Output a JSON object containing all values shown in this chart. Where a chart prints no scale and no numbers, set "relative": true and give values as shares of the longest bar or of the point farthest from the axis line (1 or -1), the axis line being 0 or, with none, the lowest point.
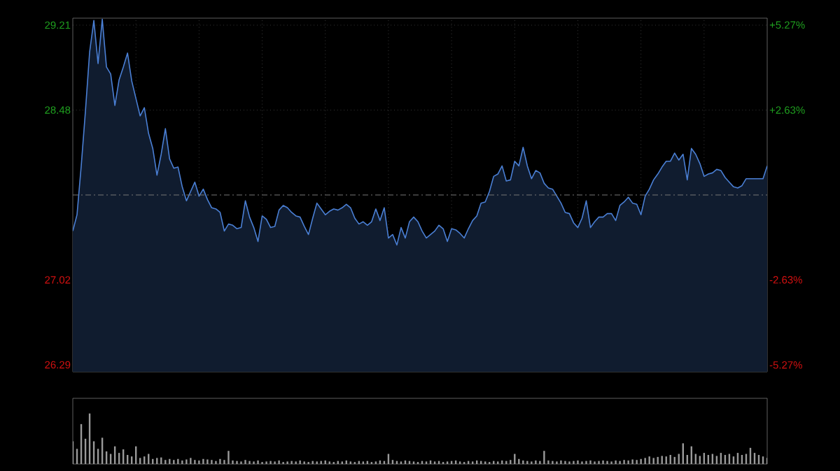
{
  "chart_data": [
    {
      "type": "area",
      "color": "#4a7fd4",
      "categories": [
        null,
        null,
        null,
        null,
        null,
        null,
        null,
        null,
        null,
        null,
        null,
        null,
        null,
        null,
        null,
        null,
        null,
        null,
        null,
        null,
        null,
        null,
        null,
        null,
        null,
        null,
        null,
        null,
        null,
        null,
        null,
        null,
        null,
        null,
        null,
        null,
        null,
        null,
        null,
        null,
        null,
        null,
        null,
        null,
        null,
        null,
        null,
        null,
        null,
        null,
        null,
        null,
        null,
        null,
        null,
        null,
        null,
        null,
        null,
        null,
        null,
        null,
        null,
        null,
        null,
        null,
        null,
        null,
        null,
        null,
        null,
        null,
        null,
        null,
        null,
        null,
        null,
        null,
        null,
        null,
        null,
        null,
        null,
        null,
        null,
        null,
        null,
        null,
        null,
        null,
        null,
        null,
        null,
        null,
        null,
        null,
        null,
        null,
        null,
        null,
        null,
        null,
        null,
        null,
        null,
        null,
        null,
        null,
        null,
        null,
        null,
        null,
        null,
        null,
        null,
        null,
        null,
        null,
        null,
        null,
        null,
        null,
        null,
        null,
        null,
        null,
        null,
        null,
        null,
        null,
        null,
        null,
        null,
        null,
        null,
        null,
        null,
        null,
        null,
        null,
        null,
        null,
        null,
        null,
        null,
        null,
        null,
        null,
        null,
        null,
        null,
        null,
        null,
        null,
        null,
        null,
        null,
        null,
        null,
        null,
        null,
        null,
        null,
        null,
        null,
        null
      ],
      "values": [
        27.44,
        27.58,
        28.0,
        28.47,
        28.98,
        29.25,
        28.88,
        29.26,
        28.85,
        28.79,
        28.52,
        28.74,
        28.85,
        28.97,
        28.73,
        28.58,
        28.43,
        28.5,
        28.28,
        28.15,
        27.92,
        28.1,
        28.32,
        28.06,
        27.98,
        27.99,
        27.82,
        27.7,
        27.78,
        27.86,
        27.74,
        27.8,
        27.71,
        27.64,
        27.63,
        27.6,
        27.44,
        27.5,
        27.49,
        27.46,
        27.47,
        27.7,
        27.56,
        27.47,
        27.35,
        27.57,
        27.54,
        27.47,
        27.48,
        27.62,
        27.66,
        27.64,
        27.6,
        27.57,
        27.56,
        27.48,
        27.41,
        27.55,
        27.68,
        27.63,
        27.58,
        27.61,
        27.63,
        27.62,
        27.64,
        27.67,
        27.64,
        27.55,
        27.5,
        27.52,
        27.49,
        27.52,
        27.63,
        27.53,
        27.64,
        27.38,
        27.41,
        27.32,
        27.47,
        27.38,
        27.52,
        27.56,
        27.52,
        27.44,
        27.38,
        27.41,
        27.44,
        27.49,
        27.46,
        27.35,
        27.46,
        27.45,
        27.42,
        27.38,
        27.46,
        27.53,
        27.57,
        27.68,
        27.69,
        27.78,
        27.91,
        27.93,
        28.0,
        27.87,
        27.88,
        28.04,
        28.0,
        28.16,
        28.0,
        27.89,
        27.96,
        27.94,
        27.85,
        27.81,
        27.8,
        27.74,
        27.68,
        27.6,
        27.59,
        27.51,
        27.47,
        27.55,
        27.7,
        27.47,
        27.52,
        27.56,
        27.56,
        27.59,
        27.59,
        27.53,
        27.66,
        27.69,
        27.73,
        27.68,
        27.67,
        27.58,
        27.74,
        27.8,
        27.88,
        27.93,
        27.99,
        28.04,
        28.04,
        28.11,
        28.05,
        28.1,
        27.88,
        28.15,
        28.1,
        28.02,
        27.91,
        27.93,
        27.94,
        27.97,
        27.96,
        27.9,
        27.86,
        27.82,
        27.81,
        27.83,
        27.89,
        27.89,
        27.89,
        27.89,
        27.89,
        28.0
      ],
      "ylim": [
        26.23,
        29.27
      ],
      "yticks": [
        26.29,
        27.02,
        28.48,
        29.21
      ],
      "y2lim": [
        -5.48,
        5.48
      ],
      "y2ticks": [
        {
          "value": -5.27,
          "label": "-5.27%"
        },
        {
          "value": -2.63,
          "label": "-2.63%"
        },
        {
          "value": 2.63,
          "label": "+2.63%"
        },
        {
          "value": 5.27,
          "label": "+5.27%"
        }
      ],
      "ref_lines": [
        {
          "axis": "y",
          "value": 27.75,
          "line_style": "dashed"
        }
      ],
      "grid": true
    },
    {
      "type": "bar",
      "color": "#9a9a9a",
      "relative": true,
      "categories": [
        null,
        null,
        null,
        null,
        null,
        null,
        null,
        null,
        null,
        null,
        null,
        null,
        null,
        null,
        null,
        null,
        null,
        null,
        null,
        null,
        null,
        null,
        null,
        null,
        null,
        null,
        null,
        null,
        null,
        null,
        null,
        null,
        null,
        null,
        null,
        null,
        null,
        null,
        null,
        null,
        null,
        null,
        null,
        null,
        null,
        null,
        null,
        null,
        null,
        null,
        null,
        null,
        null,
        null,
        null,
        null,
        null,
        null,
        null,
        null,
        null,
        null,
        null,
        null,
        null,
        null,
        null,
        null,
        null,
        null,
        null,
        null,
        null,
        null,
        null,
        null,
        null,
        null,
        null,
        null,
        null,
        null,
        null,
        null,
        null,
        null,
        null,
        null,
        null,
        null,
        null,
        null,
        null,
        null,
        null,
        null,
        null,
        null,
        null,
        null,
        null,
        null,
        null,
        null,
        null,
        null,
        null,
        null,
        null,
        null,
        null,
        null,
        null,
        null,
        null,
        null,
        null,
        null,
        null,
        null,
        null,
        null,
        null,
        null,
        null,
        null,
        null,
        null,
        null,
        null,
        null,
        null,
        null,
        null,
        null,
        null,
        null,
        null,
        null,
        null,
        null,
        null,
        null,
        null,
        null,
        null,
        null,
        null,
        null,
        null,
        null,
        null,
        null,
        null,
        null,
        null,
        null,
        null,
        null,
        null,
        null,
        null,
        null,
        null,
        null,
        null
      ],
      "values": [
        0.45,
        0.3,
        0.79,
        0.5,
        1.0,
        0.45,
        0.3,
        0.52,
        0.25,
        0.2,
        0.35,
        0.22,
        0.29,
        0.18,
        0.15,
        0.35,
        0.12,
        0.15,
        0.2,
        0.1,
        0.12,
        0.13,
        0.08,
        0.1,
        0.08,
        0.1,
        0.07,
        0.09,
        0.12,
        0.08,
        0.07,
        0.1,
        0.09,
        0.08,
        0.06,
        0.1,
        0.08,
        0.26,
        0.07,
        0.06,
        0.05,
        0.08,
        0.06,
        0.05,
        0.07,
        0.04,
        0.05,
        0.06,
        0.05,
        0.07,
        0.04,
        0.05,
        0.06,
        0.05,
        0.07,
        0.05,
        0.04,
        0.06,
        0.05,
        0.06,
        0.07,
        0.05,
        0.04,
        0.06,
        0.05,
        0.07,
        0.05,
        0.04,
        0.06,
        0.05,
        0.06,
        0.04,
        0.05,
        0.07,
        0.06,
        0.2,
        0.08,
        0.06,
        0.05,
        0.07,
        0.06,
        0.05,
        0.04,
        0.06,
        0.05,
        0.07,
        0.05,
        0.06,
        0.04,
        0.05,
        0.06,
        0.07,
        0.05,
        0.04,
        0.06,
        0.05,
        0.07,
        0.06,
        0.05,
        0.04,
        0.06,
        0.05,
        0.07,
        0.06,
        0.08,
        0.2,
        0.1,
        0.07,
        0.06,
        0.05,
        0.07,
        0.06,
        0.26,
        0.07,
        0.06,
        0.05,
        0.07,
        0.06,
        0.05,
        0.06,
        0.07,
        0.05,
        0.06,
        0.07,
        0.05,
        0.06,
        0.07,
        0.06,
        0.05,
        0.07,
        0.06,
        0.08,
        0.07,
        0.09,
        0.08,
        0.1,
        0.12,
        0.15,
        0.12,
        0.14,
        0.16,
        0.15,
        0.18,
        0.14,
        0.2,
        0.41,
        0.18,
        0.35,
        0.2,
        0.16,
        0.22,
        0.18,
        0.2,
        0.16,
        0.22,
        0.18,
        0.2,
        0.15,
        0.22,
        0.18,
        0.2,
        0.32,
        0.22,
        0.18,
        0.15,
        0.12
      ]
    }
  ]
}
